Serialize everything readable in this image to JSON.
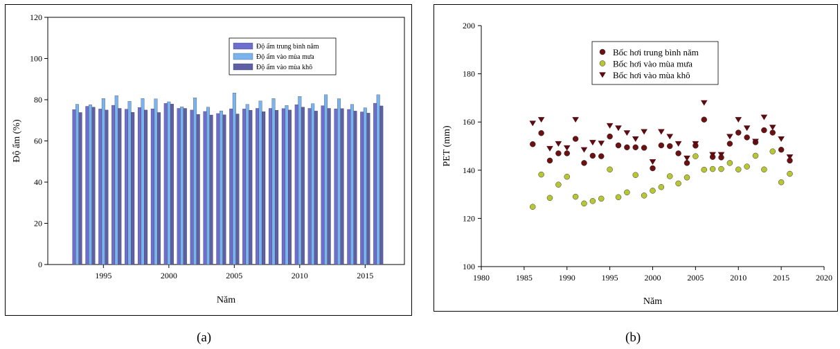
{
  "captions": {
    "a": "(a)",
    "b": "(b)"
  },
  "colors": {
    "bar_mean": "#6e6ecf",
    "bar_rainy": "#7ab4ee",
    "bar_dry": "#5f5fa6",
    "dot_mean": "#6b1111",
    "dot_rainy": "#b8c633",
    "dot_dry": "#5a0c12"
  },
  "chart_data": [
    {
      "type": "bar",
      "xlabel": "Năm",
      "ylabel": "Độ ẩm (%)",
      "ylim": [
        0,
        120
      ],
      "yticks": [
        0,
        20,
        40,
        60,
        80,
        100,
        120
      ],
      "xtick_labels": [
        "1995",
        "2000",
        "2005",
        "2010",
        "2015"
      ],
      "xtick_values": [
        1995,
        2000,
        2005,
        2010,
        2015
      ],
      "legend_position": "top-right",
      "categories": [
        1993,
        1994,
        1995,
        1996,
        1997,
        1998,
        1999,
        2000,
        2001,
        2002,
        2003,
        2004,
        2005,
        2006,
        2007,
        2008,
        2009,
        2010,
        2011,
        2012,
        2013,
        2014,
        2015,
        2016
      ],
      "series": [
        {
          "name": "Độ ẩm trung bình năm",
          "values": [
            75.2,
            76.8,
            75.5,
            77.3,
            75.4,
            76.2,
            75.6,
            78.2,
            75.8,
            75.0,
            74.3,
            73.3,
            75.6,
            75.5,
            75.8,
            75.8,
            75.7,
            77.6,
            75.8,
            77.1,
            75.6,
            75.3,
            74.1,
            78.3
          ]
        },
        {
          "name": "Độ ẩm vào mùa mưa",
          "values": [
            77.8,
            77.6,
            80.6,
            82.0,
            79.2,
            80.6,
            80.4,
            79.0,
            76.6,
            80.9,
            76.4,
            74.6,
            83.3,
            77.7,
            79.4,
            80.6,
            77.2,
            81.6,
            78.1,
            82.4,
            80.5,
            77.7,
            76.1,
            82.4
          ]
        },
        {
          "name": "Độ ẩm vào mùa khô",
          "values": [
            73.8,
            76.4,
            75.0,
            75.8,
            73.9,
            75.0,
            73.8,
            77.9,
            75.8,
            72.9,
            72.6,
            72.7,
            73.1,
            74.9,
            74.2,
            74.9,
            75.0,
            76.4,
            74.5,
            75.8,
            75.7,
            74.5,
            73.5,
            77.0
          ]
        }
      ]
    },
    {
      "type": "scatter",
      "xlabel": "Năm",
      "ylabel": "PET (mm)",
      "xlim": [
        1980,
        2020
      ],
      "ylim": [
        100,
        200
      ],
      "xticks": [
        1980,
        1985,
        1990,
        1995,
        2000,
        2005,
        2010,
        2015,
        2020
      ],
      "yticks": [
        100,
        120,
        140,
        160,
        180,
        200
      ],
      "legend_position": "top-center",
      "series": [
        {
          "name": "Bốc hơi trung bình năm",
          "marker": "circle",
          "x": [
            1986,
            1987,
            1988,
            1989,
            1990,
            1991,
            1992,
            1993,
            1994,
            1995,
            1996,
            1997,
            1998,
            1999,
            2000,
            2001,
            2002,
            2003,
            2004,
            2005,
            2006,
            2007,
            2008,
            2009,
            2010,
            2011,
            2012,
            2013,
            2014,
            2015,
            2016
          ],
          "y": [
            150.8,
            155.4,
            144.0,
            147.0,
            147.0,
            153.0,
            143.0,
            146.0,
            145.8,
            154.0,
            150.3,
            149.5,
            149.5,
            149.3,
            140.8,
            150.3,
            150.0,
            147.0,
            143.0,
            150.2,
            161.0,
            145.5,
            145.3,
            151.0,
            155.6,
            153.6,
            151.6,
            156.6,
            155.6,
            148.5,
            144.0
          ]
        },
        {
          "name": "Bốc hơi vào mùa mưa",
          "marker": "circle",
          "x": [
            1986,
            1987,
            1988,
            1989,
            1990,
            1991,
            1992,
            1993,
            1994,
            1995,
            1996,
            1997,
            1998,
            1999,
            2000,
            2001,
            2002,
            2003,
            2004,
            2005,
            2006,
            2007,
            2008,
            2009,
            2010,
            2011,
            2012,
            2013,
            2014,
            2015,
            2016
          ],
          "y": [
            124.8,
            138.2,
            128.5,
            134.0,
            137.3,
            129.0,
            126.2,
            127.2,
            128.2,
            140.3,
            128.8,
            130.8,
            138.0,
            129.5,
            131.5,
            133.0,
            137.5,
            134.5,
            137.0,
            145.8,
            140.2,
            140.5,
            140.5,
            143.0,
            140.3,
            141.5,
            146.0,
            140.3,
            147.8,
            135.0,
            138.5
          ]
        },
        {
          "name": "Bốc hơi vào mùa khô",
          "marker": "triangle-down",
          "x": [
            1986,
            1987,
            1988,
            1989,
            1990,
            1991,
            1992,
            1993,
            1994,
            1995,
            1996,
            1997,
            1998,
            1999,
            2000,
            2001,
            2002,
            2003,
            2004,
            2005,
            2006,
            2007,
            2008,
            2009,
            2010,
            2011,
            2012,
            2013,
            2014,
            2015,
            2016
          ],
          "y": [
            159.5,
            161.0,
            149.0,
            151.0,
            149.3,
            161.0,
            148.5,
            151.5,
            151.2,
            158.5,
            157.5,
            155.5,
            153.0,
            156.0,
            143.5,
            156.0,
            154.0,
            151.0,
            145.0,
            151.0,
            168.0,
            146.5,
            146.5,
            154.0,
            161.0,
            157.5,
            152.0,
            162.0,
            157.8,
            153.0,
            145.5
          ]
        }
      ]
    }
  ]
}
